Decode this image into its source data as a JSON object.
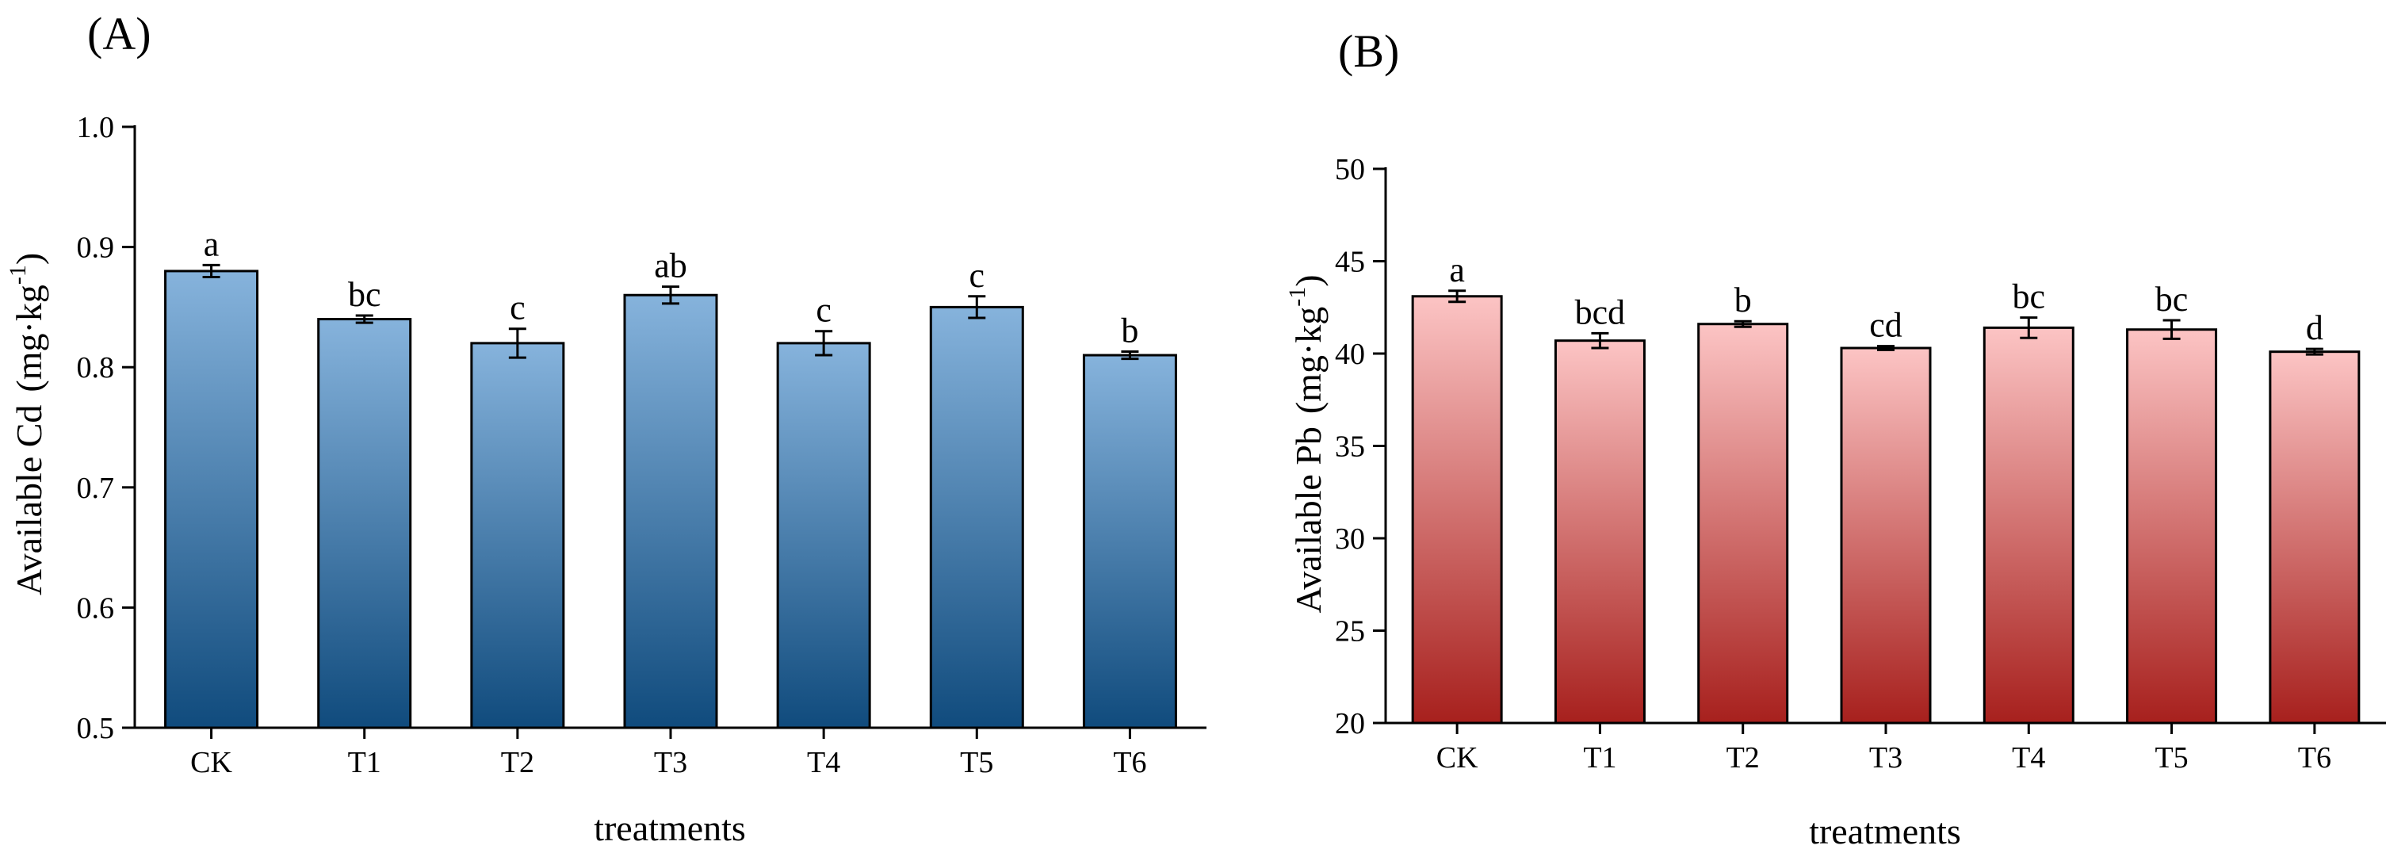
{
  "chart_data": [
    {
      "type": "bar",
      "panel_label": "(A)",
      "categories": [
        "CK",
        "T1",
        "T2",
        "T3",
        "T4",
        "T5",
        "T6"
      ],
      "values": [
        0.88,
        0.84,
        0.82,
        0.86,
        0.82,
        0.85,
        0.81
      ],
      "errors": [
        0.005,
        0.003,
        0.012,
        0.007,
        0.01,
        0.009,
        0.003
      ],
      "significance": [
        "a",
        "bc",
        "c",
        "ab",
        "c",
        "c",
        "b"
      ],
      "xlabel": "treatments",
      "ylabel_main": "Available Cd",
      "ylabel_unit": "(mg·kg",
      "ylabel_sup": "-1",
      "ylabel_close": ")",
      "ylim": [
        0.5,
        1.0
      ],
      "yticks": [
        0.5,
        0.6,
        0.7,
        0.8,
        0.9,
        1.0
      ],
      "ytick_labels": [
        "0.5",
        "0.6",
        "0.7",
        "0.8",
        "0.9",
        "1.0"
      ],
      "colors": {
        "top": "#86b3dc",
        "bottom": "#104b7d"
      }
    },
    {
      "type": "bar",
      "panel_label": "(B)",
      "categories": [
        "CK",
        "T1",
        "T2",
        "T3",
        "T4",
        "T5",
        "T6"
      ],
      "values": [
        43.1,
        40.7,
        41.6,
        40.3,
        41.4,
        41.3,
        40.1
      ],
      "errors": [
        0.3,
        0.4,
        0.15,
        0.1,
        0.55,
        0.5,
        0.15
      ],
      "significance": [
        "a",
        "bcd",
        "b",
        "cd",
        "bc",
        "bc",
        "d"
      ],
      "xlabel": "treatments",
      "ylabel_main": "Available Pb",
      "ylabel_unit": "(mg·kg",
      "ylabel_sup": "-1",
      "ylabel_close": ")",
      "ylim": [
        20,
        50
      ],
      "yticks": [
        20,
        25,
        30,
        35,
        40,
        45,
        50
      ],
      "ytick_labels": [
        "20",
        "25",
        "30",
        "35",
        "40",
        "45",
        "50"
      ],
      "colors": {
        "top": "#fcc4c4",
        "bottom": "#a7201d"
      }
    }
  ]
}
